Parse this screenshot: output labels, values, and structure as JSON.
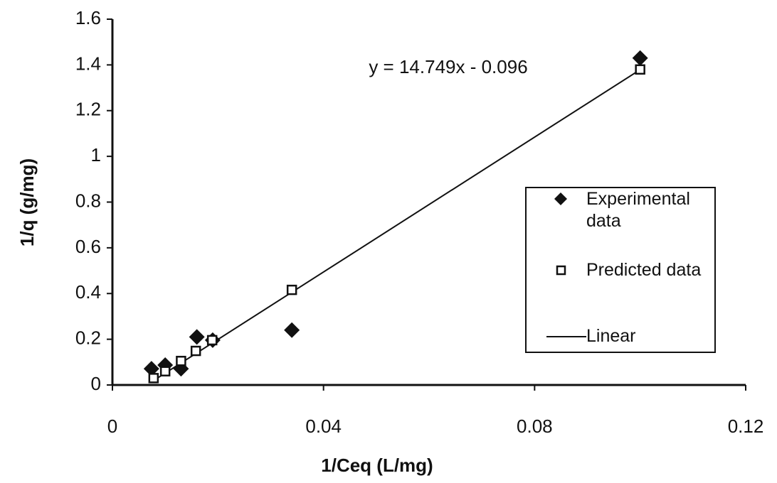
{
  "chart_data": {
    "type": "scatter",
    "xlabel": "1/Ceq (L/mg)",
    "ylabel": "1/q (g/mg)",
    "annotation": "y = 14.749x - 0.096",
    "xlim": [
      0,
      0.12
    ],
    "xticks": [
      0,
      0.04,
      0.08,
      0.12
    ],
    "ylim": [
      0,
      1.6
    ],
    "yticks": [
      0,
      0.2,
      0.4,
      0.6,
      0.8,
      1,
      1.2,
      1.4,
      1.6
    ],
    "grid": false,
    "legend": "right",
    "series": [
      {
        "name": "Experimental data",
        "marker": "diamond",
        "color": "#111111",
        "x": [
          0.0074,
          0.01,
          0.013,
          0.016,
          0.019,
          0.034,
          0.1
        ],
        "values": [
          0.071,
          0.087,
          0.071,
          0.21,
          0.196,
          0.24,
          1.43
        ]
      },
      {
        "name": "Predicted data",
        "marker": "square",
        "color": "#111111",
        "x": [
          0.0078,
          0.01,
          0.013,
          0.0158,
          0.0189,
          0.034,
          0.1
        ],
        "values": [
          0.03,
          0.06,
          0.105,
          0.149,
          0.196,
          0.416,
          1.38
        ]
      },
      {
        "name": "Linear",
        "marker": "line",
        "color": "#111111",
        "x": [
          0.0075,
          0.1
        ],
        "values": [
          0.015,
          1.379
        ]
      }
    ]
  }
}
